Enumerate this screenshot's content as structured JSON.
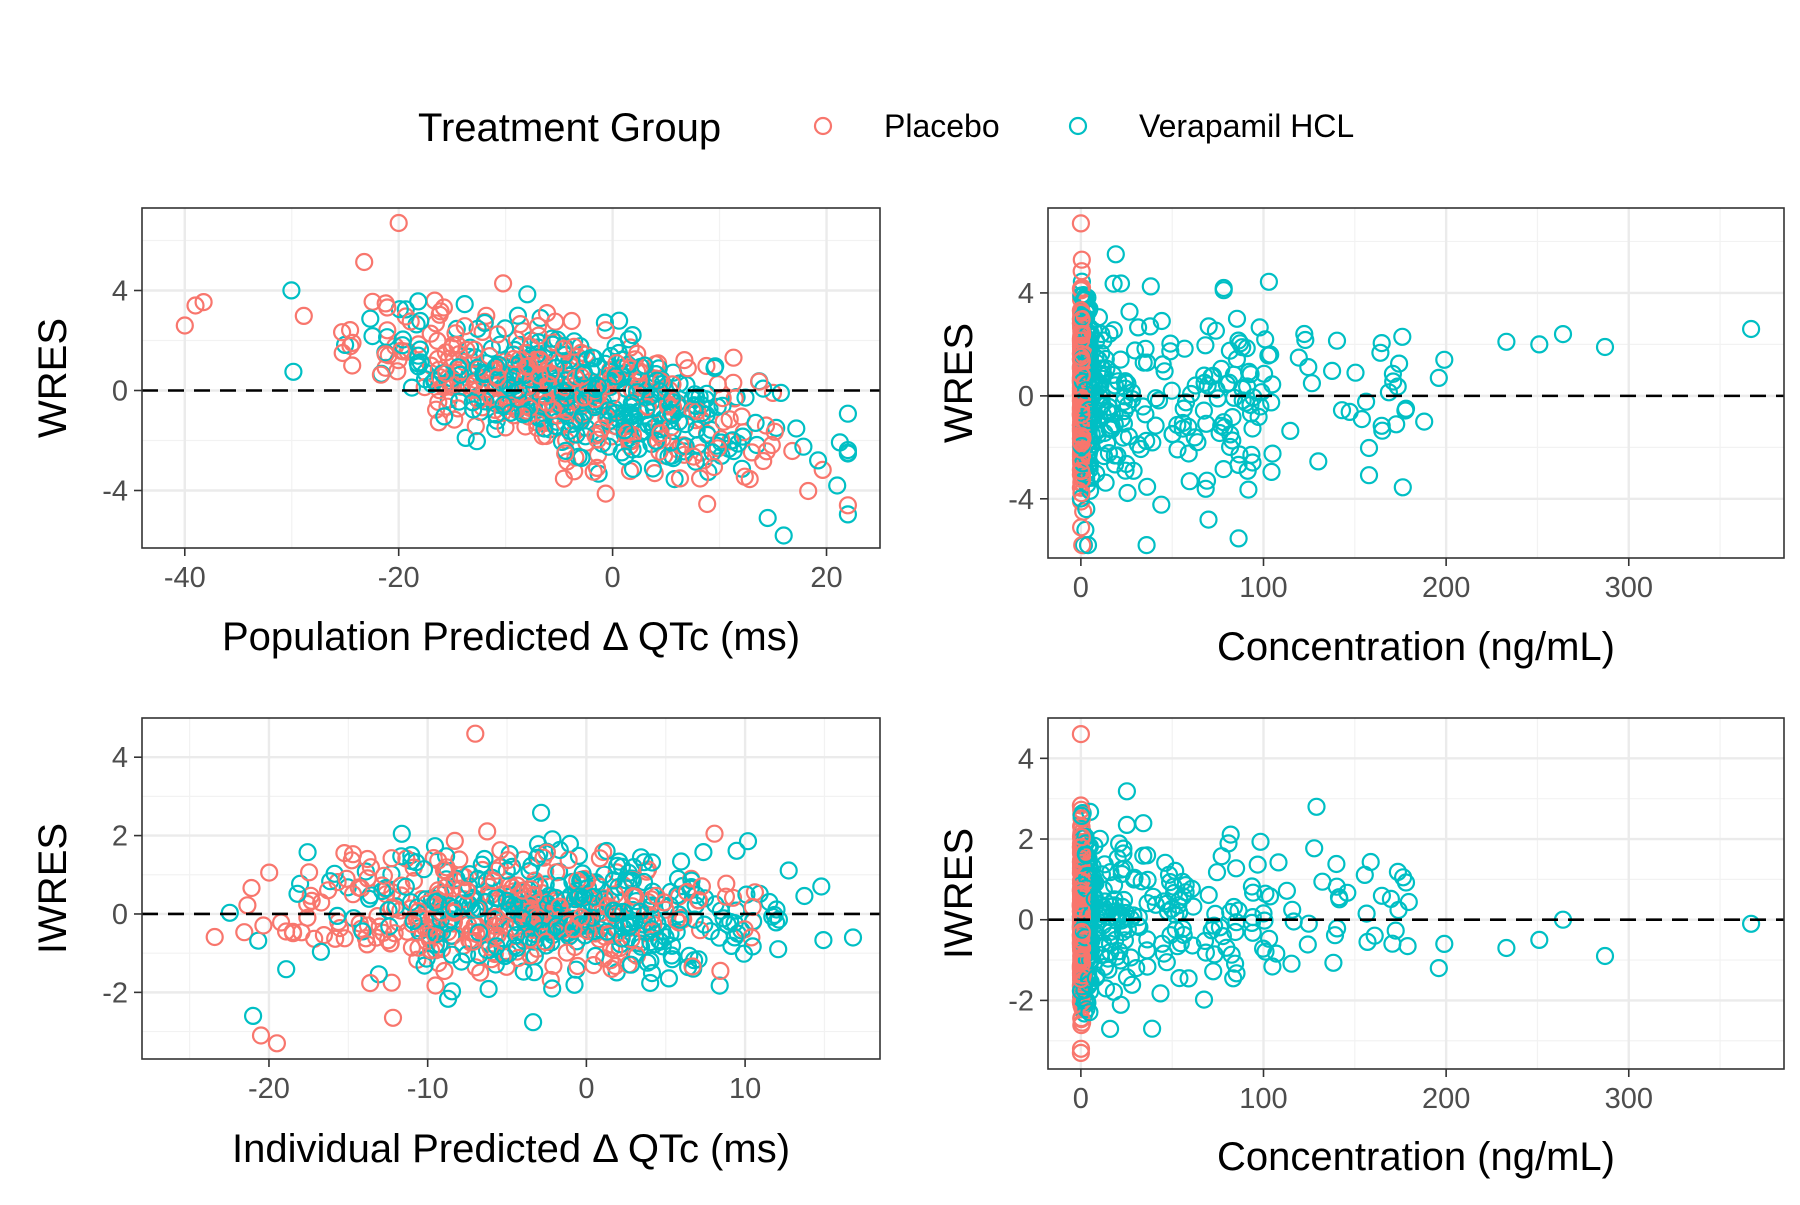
{
  "legend": {
    "title": "Treatment Group",
    "items": [
      {
        "label": "Placebo",
        "color": "#F8766D"
      },
      {
        "label": "Verapamil HCL",
        "color": "#00BFC4"
      }
    ]
  },
  "chart_data": [
    {
      "type": "scatter",
      "id": "p1",
      "xlabel": "Population Predicted  Δ QTc (ms)",
      "ylabel": "WRES",
      "xlim": [
        -44,
        25
      ],
      "ylim": [
        -6.3,
        7.3
      ],
      "xticks": [
        -40,
        -20,
        0,
        20
      ],
      "yticks": [
        -4,
        0,
        4
      ],
      "xminor": [
        -30,
        -10,
        10
      ],
      "yminor": [
        -2,
        2,
        6
      ],
      "zero_line": 0,
      "grid": true,
      "xcenter": -4,
      "xsd": 9.5,
      "slope": -0.09,
      "noise": 1.25,
      "outliers": [
        {
          "series": 0,
          "x": -20,
          "y": 6.7
        },
        {
          "series": 1,
          "x": 16,
          "y": -5.8
        },
        {
          "series": 1,
          "x": 14.5,
          "y": -5.1
        },
        {
          "series": 1,
          "x": 21,
          "y": -3.8
        },
        {
          "series": 0,
          "x": -40,
          "y": 2.6
        },
        {
          "series": 0,
          "x": -39,
          "y": 3.4
        }
      ],
      "series": [
        {
          "name": "Placebo",
          "color": "#F8766D",
          "n": 330
        },
        {
          "name": "Verapamil HCL",
          "color": "#00BFC4",
          "n": 360
        }
      ]
    },
    {
      "type": "scatter",
      "id": "p2",
      "xlabel": "Concentration (ng/mL)",
      "ylabel": "WRES",
      "xlim": [
        -18,
        385
      ],
      "ylim": [
        -6.3,
        7.3
      ],
      "xticks": [
        0,
        100,
        200,
        300
      ],
      "yticks": [
        -4,
        0,
        4
      ],
      "xminor": [
        50,
        150,
        250,
        350
      ],
      "yminor": [
        -2,
        2,
        6
      ],
      "zero_line": 0,
      "grid": true,
      "outliers": [
        {
          "series": 0,
          "x": 0,
          "y": 6.7
        },
        {
          "series": 1,
          "x": 367,
          "y": 2.6
        },
        {
          "series": 1,
          "x": 287,
          "y": 1.9
        },
        {
          "series": 1,
          "x": 264,
          "y": 2.4
        },
        {
          "series": 1,
          "x": 251,
          "y": 2.0
        },
        {
          "series": 1,
          "x": 233,
          "y": 2.1
        },
        {
          "series": 1,
          "x": 199,
          "y": 1.4
        },
        {
          "series": 1,
          "x": 196,
          "y": 0.7
        },
        {
          "series": 1,
          "x": 188,
          "y": -1.0
        },
        {
          "series": 1,
          "x": 178,
          "y": -0.5
        },
        {
          "series": 1,
          "x": 36,
          "y": -5.8
        }
      ],
      "series": [
        {
          "name": "Placebo",
          "color": "#F8766D",
          "n": 330
        },
        {
          "name": "Verapamil HCL",
          "color": "#00BFC4",
          "n": 360
        }
      ]
    },
    {
      "type": "scatter",
      "id": "p3",
      "xlabel": "Individual Predicted  Δ QTc (ms)",
      "ylabel": "IWRES",
      "xlim": [
        -28,
        18.5
      ],
      "ylim": [
        -3.7,
        5.0
      ],
      "xticks": [
        -20,
        -10,
        0,
        10
      ],
      "yticks": [
        -2,
        0,
        2,
        4
      ],
      "xminor": [
        -25,
        -15,
        -5,
        5,
        15
      ],
      "yminor": [
        -3,
        -1,
        1,
        3
      ],
      "zero_line": 0,
      "grid": true,
      "xcenter": -4,
      "xsd": 7.0,
      "slope": 0,
      "noise": 0.8,
      "outliers": [
        {
          "series": 0,
          "x": -7,
          "y": 4.6
        },
        {
          "series": 0,
          "x": -19.5,
          "y": -3.3
        },
        {
          "series": 0,
          "x": -20.5,
          "y": -3.1
        },
        {
          "series": 1,
          "x": -21,
          "y": -2.6
        },
        {
          "series": 1,
          "x": 16.8,
          "y": -0.6
        },
        {
          "series": 1,
          "x": 14.8,
          "y": 0.7
        }
      ],
      "series": [
        {
          "name": "Placebo",
          "color": "#F8766D",
          "n": 330
        },
        {
          "name": "Verapamil HCL",
          "color": "#00BFC4",
          "n": 360
        }
      ]
    },
    {
      "type": "scatter",
      "id": "p4",
      "xlabel": "Concentration (ng/mL)",
      "ylabel": "IWRES",
      "xlim": [
        -18,
        385
      ],
      "ylim": [
        -3.7,
        5.0
      ],
      "xticks": [
        0,
        100,
        200,
        300
      ],
      "yticks": [
        -2,
        0,
        2,
        4
      ],
      "xminor": [
        50,
        150,
        250,
        350
      ],
      "yminor": [
        -3,
        -1,
        1,
        3
      ],
      "zero_line": 0,
      "grid": true,
      "outliers": [
        {
          "series": 0,
          "x": 0,
          "y": 4.6
        },
        {
          "series": 0,
          "x": 0,
          "y": -3.3
        },
        {
          "series": 1,
          "x": 367,
          "y": -0.1
        },
        {
          "series": 1,
          "x": 287,
          "y": -0.9
        },
        {
          "series": 1,
          "x": 264,
          "y": 0.0
        },
        {
          "series": 1,
          "x": 251,
          "y": -0.5
        },
        {
          "series": 1,
          "x": 233,
          "y": -0.7
        },
        {
          "series": 1,
          "x": 199,
          "y": -0.6
        },
        {
          "series": 1,
          "x": 196,
          "y": -1.2
        },
        {
          "series": 1,
          "x": 129,
          "y": 2.8
        },
        {
          "series": 1,
          "x": 39,
          "y": -2.7
        }
      ],
      "series": [
        {
          "name": "Placebo",
          "color": "#F8766D",
          "n": 330
        },
        {
          "name": "Verapamil HCL",
          "color": "#00BFC4",
          "n": 360
        }
      ]
    }
  ]
}
